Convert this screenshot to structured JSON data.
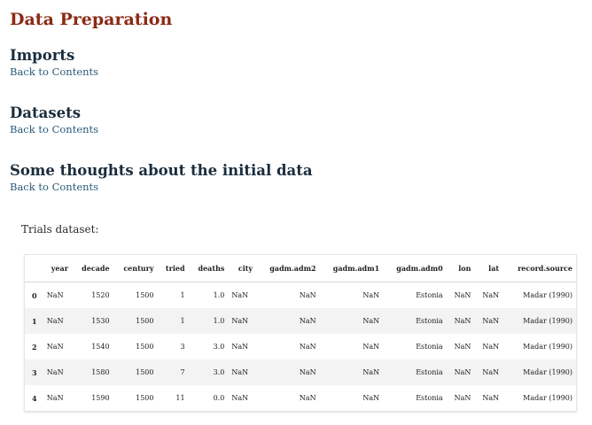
{
  "page_title": "Data Preparation",
  "sections": [
    {
      "heading": "Imports",
      "link": "Back to Contents"
    },
    {
      "heading": "Datasets",
      "link": "Back to Contents"
    },
    {
      "heading": "Some thoughts about the initial data",
      "link": "Back to Contents"
    }
  ],
  "caption": "Trials dataset:",
  "table": {
    "columns": [
      "",
      "year",
      "decade",
      "century",
      "tried",
      "deaths",
      "city",
      "gadm.adm2",
      "gadm.adm1",
      "gadm.adm0",
      "lon",
      "lat",
      "record.source"
    ],
    "rows": [
      [
        "0",
        "NaN",
        "1520",
        "1500",
        "1",
        "1.0",
        "NaN",
        "NaN",
        "NaN",
        "Estonia",
        "NaN",
        "NaN",
        "Madar (1990)"
      ],
      [
        "1",
        "NaN",
        "1530",
        "1500",
        "1",
        "1.0",
        "NaN",
        "NaN",
        "NaN",
        "Estonia",
        "NaN",
        "NaN",
        "Madar (1990)"
      ],
      [
        "2",
        "NaN",
        "1540",
        "1500",
        "3",
        "3.0",
        "NaN",
        "NaN",
        "NaN",
        "Estonia",
        "NaN",
        "NaN",
        "Madar (1990)"
      ],
      [
        "3",
        "NaN",
        "1580",
        "1500",
        "7",
        "3.0",
        "NaN",
        "NaN",
        "NaN",
        "Estonia",
        "NaN",
        "NaN",
        "Madar (1990)"
      ],
      [
        "4",
        "NaN",
        "1590",
        "1500",
        "11",
        "0.0",
        "NaN",
        "NaN",
        "NaN",
        "Estonia",
        "NaN",
        "NaN",
        "Madar (1990)"
      ]
    ]
  },
  "colors": {
    "title": "#8b2a16",
    "heading": "#1a2d3d",
    "link": "#2a5a7a",
    "row_stripe": "#f3f3f3"
  }
}
